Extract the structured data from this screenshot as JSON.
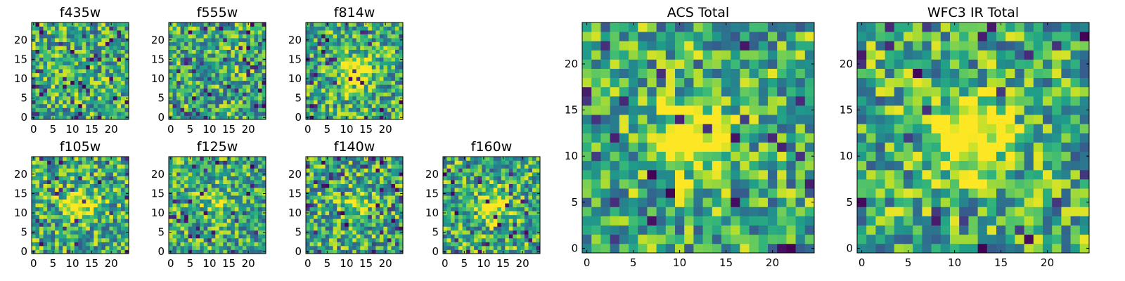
{
  "chart_data": [
    {
      "type": "heatmap",
      "title": "f435w",
      "xticks": [
        "0",
        "5",
        "10",
        "15",
        "20"
      ],
      "yticks": [
        "0",
        "5",
        "10",
        "15",
        "20"
      ],
      "xlim": [
        0,
        25
      ],
      "ylim": [
        0,
        25
      ],
      "grid": "25x25 pixels",
      "colormap": "viridis",
      "seed": 11,
      "blob_strength": 0.0,
      "dark_fraction": 0.06
    },
    {
      "type": "heatmap",
      "title": "f555w",
      "xticks": [
        "0",
        "5",
        "10",
        "15",
        "20"
      ],
      "yticks": [
        "0",
        "5",
        "10",
        "15",
        "20"
      ],
      "xlim": [
        0,
        25
      ],
      "ylim": [
        0,
        25
      ],
      "grid": "25x25 pixels",
      "colormap": "viridis",
      "seed": 23,
      "blob_strength": 0.0,
      "dark_fraction": 0.06
    },
    {
      "type": "heatmap",
      "title": "f814w",
      "xticks": [
        "0",
        "5",
        "10",
        "15",
        "20"
      ],
      "yticks": [
        "0",
        "5",
        "10",
        "15",
        "20"
      ],
      "xlim": [
        0,
        25
      ],
      "ylim": [
        0,
        25
      ],
      "grid": "25x25 pixels",
      "colormap": "viridis",
      "seed": 37,
      "blob_strength": 0.6,
      "dark_fraction": 0.05
    },
    {
      "type": "heatmap",
      "title": "f105w",
      "xticks": [
        "0",
        "5",
        "10",
        "15",
        "20"
      ],
      "yticks": [
        "0",
        "5",
        "10",
        "15",
        "20"
      ],
      "xlim": [
        0,
        25
      ],
      "ylim": [
        0,
        25
      ],
      "grid": "25x25 pixels",
      "colormap": "viridis",
      "seed": 41,
      "blob_strength": 0.5,
      "dark_fraction": 0.05
    },
    {
      "type": "heatmap",
      "title": "f125w",
      "xticks": [
        "0",
        "5",
        "10",
        "15",
        "20"
      ],
      "yticks": [
        "0",
        "5",
        "10",
        "15",
        "20"
      ],
      "xlim": [
        0,
        25
      ],
      "ylim": [
        0,
        25
      ],
      "grid": "25x25 pixels",
      "colormap": "viridis",
      "seed": 53,
      "blob_strength": 0.2,
      "dark_fraction": 0.06
    },
    {
      "type": "heatmap",
      "title": "f140w",
      "xticks": [
        "0",
        "5",
        "10",
        "15",
        "20"
      ],
      "yticks": [
        "0",
        "5",
        "10",
        "15",
        "20"
      ],
      "xlim": [
        0,
        25
      ],
      "ylim": [
        0,
        25
      ],
      "grid": "25x25 pixels",
      "colormap": "viridis",
      "seed": 67,
      "blob_strength": 0.2,
      "dark_fraction": 0.06
    },
    {
      "type": "heatmap",
      "title": "f160w",
      "xticks": [
        "0",
        "5",
        "10",
        "15",
        "20"
      ],
      "yticks": [
        "0",
        "5",
        "10",
        "15",
        "20"
      ],
      "xlim": [
        0,
        25
      ],
      "ylim": [
        0,
        25
      ],
      "grid": "25x25 pixels",
      "colormap": "viridis",
      "seed": 79,
      "blob_strength": 0.4,
      "dark_fraction": 0.06
    },
    {
      "type": "heatmap",
      "title": "ACS Total",
      "xticks": [
        "0",
        "5",
        "10",
        "15",
        "20"
      ],
      "yticks": [
        "0",
        "5",
        "10",
        "15",
        "20"
      ],
      "xlim": [
        0,
        25
      ],
      "ylim": [
        0,
        25
      ],
      "grid": "25x25 pixels",
      "colormap": "viridis",
      "seed": 83,
      "blob_strength": 0.6,
      "dark_fraction": 0.05
    },
    {
      "type": "heatmap",
      "title": "WFC3 IR Total",
      "xticks": [
        "0",
        "5",
        "10",
        "15",
        "20"
      ],
      "yticks": [
        "0",
        "5",
        "10",
        "15",
        "20"
      ],
      "xlim": [
        0,
        25
      ],
      "ylim": [
        0,
        25
      ],
      "grid": "25x25 pixels",
      "colormap": "viridis",
      "seed": 97,
      "blob_strength": 0.7,
      "dark_fraction": 0.04
    }
  ]
}
